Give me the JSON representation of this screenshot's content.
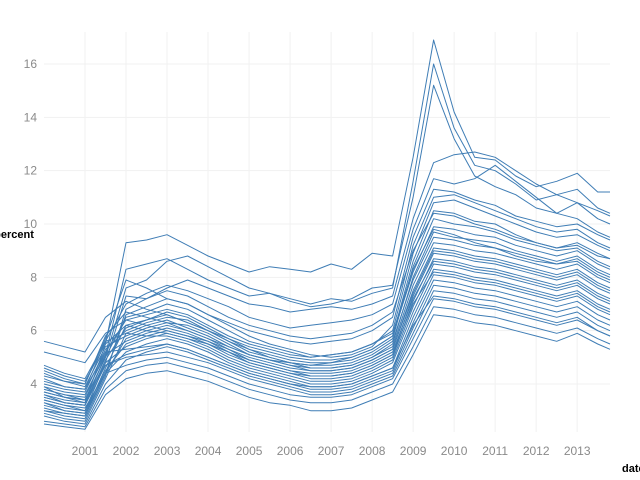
{
  "chart_data": {
    "type": "line",
    "xlabel": "date",
    "ylabel": "percent",
    "xlim": [
      2000.0,
      2013.8
    ],
    "ylim": [
      2.2,
      17.2
    ],
    "x_ticks": [
      "2001",
      "2002",
      "2003",
      "2004",
      "2005",
      "2006",
      "2007",
      "2008",
      "2009",
      "2010",
      "2011",
      "2012",
      "2013"
    ],
    "y_ticks": [
      "4",
      "6",
      "8",
      "10",
      "12",
      "14",
      "16"
    ],
    "x_tick_values": [
      2001,
      2002,
      2003,
      2004,
      2005,
      2006,
      2007,
      2008,
      2009,
      2010,
      2011,
      2012,
      2013
    ],
    "y_tick_values": [
      4,
      6,
      8,
      10,
      12,
      14,
      16
    ],
    "grid": true,
    "line_color": "#3f7db5",
    "x": [
      2000.0,
      2000.5,
      2001.0,
      2001.5,
      2002.0,
      2002.5,
      2003.0,
      2003.5,
      2004.0,
      2004.5,
      2005.0,
      2005.5,
      2006.0,
      2006.5,
      2007.0,
      2007.5,
      2008.0,
      2008.5,
      2009.0,
      2009.5,
      2010.0,
      2010.5,
      2011.0,
      2011.5,
      2012.0,
      2012.5,
      2013.0,
      2013.5,
      2013.8
    ],
    "series": [
      {
        "values": [
          3.9,
          3.5,
          3.3,
          5.5,
          9.3,
          9.4,
          9.6,
          9.2,
          8.8,
          8.5,
          8.2,
          8.4,
          8.3,
          8.2,
          8.5,
          8.3,
          8.9,
          8.8,
          12.5,
          16.9,
          14.2,
          12.5,
          12.4,
          11.8,
          11.4,
          11.6,
          11.9,
          11.2,
          11.2
        ]
      },
      {
        "values": [
          3.6,
          3.3,
          3.2,
          5.1,
          8.3,
          8.5,
          8.7,
          8.3,
          7.9,
          7.6,
          7.3,
          7.4,
          7.2,
          7.0,
          7.2,
          7.1,
          7.4,
          7.6,
          11.6,
          16.0,
          13.6,
          12.2,
          12.0,
          11.5,
          10.9,
          11.1,
          11.3,
          10.6,
          10.4
        ]
      },
      {
        "values": [
          3.7,
          3.5,
          3.4,
          5.0,
          7.6,
          7.9,
          8.6,
          8.8,
          8.4,
          8.0,
          7.6,
          7.4,
          7.1,
          6.9,
          7.0,
          7.2,
          7.6,
          7.7,
          11.0,
          15.2,
          13.2,
          11.8,
          11.4,
          11.1,
          10.6,
          10.4,
          10.8,
          10.2,
          10.0
        ]
      },
      {
        "values": [
          3.4,
          3.2,
          3.0,
          4.8,
          7.3,
          7.2,
          7.6,
          7.9,
          7.6,
          7.3,
          7.0,
          6.9,
          6.7,
          6.8,
          6.9,
          6.8,
          7.0,
          7.3,
          10.2,
          12.3,
          12.6,
          12.7,
          12.5,
          12.0,
          11.5,
          11.1,
          10.8,
          10.5,
          10.3
        ]
      },
      {
        "values": [
          4.2,
          3.9,
          3.8,
          5.6,
          7.0,
          7.4,
          7.7,
          7.5,
          7.2,
          6.9,
          6.5,
          6.3,
          6.1,
          6.2,
          6.3,
          6.4,
          6.6,
          7.0,
          9.8,
          11.7,
          11.5,
          11.7,
          12.2,
          11.6,
          11.0,
          10.4,
          10.2,
          9.7,
          9.5
        ]
      },
      {
        "values": [
          3.0,
          2.9,
          2.8,
          4.4,
          6.6,
          6.9,
          7.2,
          7.0,
          6.6,
          6.3,
          6.0,
          5.8,
          5.6,
          5.5,
          5.6,
          5.7,
          6.0,
          6.5,
          9.5,
          11.3,
          11.2,
          10.9,
          10.7,
          10.3,
          10.1,
          9.9,
          10.0,
          9.6,
          9.4
        ]
      },
      {
        "values": [
          3.8,
          3.6,
          3.5,
          5.2,
          6.4,
          6.6,
          6.8,
          6.6,
          6.2,
          5.8,
          5.5,
          5.3,
          5.1,
          5.0,
          5.1,
          5.2,
          5.5,
          6.0,
          8.9,
          10.8,
          10.9,
          10.6,
          10.3,
          10.0,
          9.7,
          9.5,
          9.6,
          9.2,
          9.0
        ]
      },
      {
        "values": [
          4.5,
          4.2,
          4.0,
          5.8,
          6.7,
          6.5,
          6.3,
          6.0,
          5.7,
          5.4,
          5.1,
          4.9,
          4.8,
          4.7,
          4.8,
          5.0,
          5.3,
          5.8,
          8.6,
          10.5,
          10.4,
          10.1,
          10.0,
          9.6,
          9.3,
          9.1,
          9.2,
          8.8,
          8.7
        ]
      },
      {
        "values": [
          3.3,
          3.0,
          2.9,
          4.6,
          6.2,
          6.4,
          6.6,
          6.3,
          6.0,
          5.6,
          5.3,
          5.1,
          4.9,
          4.8,
          4.8,
          4.9,
          5.2,
          5.7,
          8.4,
          10.2,
          10.0,
          9.9,
          9.7,
          9.4,
          9.2,
          9.0,
          9.1,
          8.6,
          8.4
        ]
      },
      {
        "values": [
          5.6,
          5.4,
          5.2,
          6.5,
          7.1,
          6.8,
          6.6,
          6.3,
          6.0,
          5.7,
          5.4,
          5.2,
          5.0,
          4.9,
          4.9,
          5.0,
          5.3,
          5.8,
          8.2,
          9.9,
          9.8,
          9.6,
          9.5,
          9.2,
          9.0,
          8.8,
          9.0,
          8.5,
          8.3
        ]
      },
      {
        "values": [
          2.9,
          2.7,
          2.6,
          4.2,
          5.9,
          6.2,
          6.4,
          6.1,
          5.8,
          5.4,
          5.1,
          4.9,
          4.7,
          4.6,
          4.6,
          4.7,
          5.0,
          5.5,
          8.0,
          9.7,
          9.5,
          9.4,
          9.3,
          9.0,
          8.8,
          8.6,
          8.8,
          8.3,
          8.1
        ]
      },
      {
        "values": [
          4.0,
          3.8,
          3.7,
          5.3,
          6.0,
          6.3,
          6.5,
          6.4,
          6.0,
          5.6,
          5.2,
          5.0,
          4.8,
          4.7,
          4.7,
          4.8,
          5.1,
          5.6,
          7.9,
          9.5,
          9.4,
          9.2,
          9.1,
          8.8,
          8.6,
          8.5,
          8.6,
          8.1,
          7.9
        ]
      },
      {
        "values": [
          3.5,
          3.3,
          3.2,
          4.9,
          6.1,
          6.4,
          6.7,
          6.5,
          6.1,
          5.7,
          5.3,
          5.0,
          4.8,
          4.6,
          4.6,
          4.7,
          5.0,
          5.4,
          7.7,
          9.3,
          9.2,
          9.0,
          8.9,
          8.7,
          8.5,
          8.3,
          8.5,
          8.0,
          7.8
        ]
      },
      {
        "values": [
          4.4,
          4.1,
          3.9,
          5.4,
          5.8,
          6.1,
          6.3,
          6.2,
          5.9,
          5.5,
          5.1,
          4.9,
          4.7,
          4.5,
          4.5,
          4.6,
          4.9,
          5.3,
          7.5,
          9.1,
          9.0,
          8.8,
          8.7,
          8.5,
          8.3,
          8.1,
          8.3,
          7.8,
          7.6
        ]
      },
      {
        "values": [
          3.1,
          2.9,
          2.8,
          4.4,
          5.7,
          6.0,
          6.2,
          6.0,
          5.7,
          5.3,
          4.9,
          4.7,
          4.5,
          4.3,
          4.3,
          4.4,
          4.7,
          5.1,
          7.3,
          8.9,
          8.8,
          8.6,
          8.5,
          8.3,
          8.1,
          7.9,
          8.1,
          7.6,
          7.4
        ]
      },
      {
        "values": [
          3.9,
          3.7,
          3.6,
          5.1,
          5.6,
          5.9,
          6.1,
          5.9,
          5.6,
          5.2,
          4.8,
          4.6,
          4.4,
          4.2,
          4.2,
          4.3,
          4.6,
          5.0,
          7.1,
          8.7,
          8.6,
          8.4,
          8.3,
          8.1,
          7.9,
          7.7,
          7.9,
          7.4,
          7.2
        ]
      },
      {
        "values": [
          3.6,
          3.4,
          3.3,
          4.8,
          5.4,
          5.7,
          5.9,
          5.7,
          5.4,
          5.0,
          4.7,
          4.5,
          4.3,
          4.1,
          4.1,
          4.2,
          4.5,
          4.9,
          6.9,
          8.5,
          8.4,
          8.2,
          8.1,
          7.9,
          7.7,
          7.5,
          7.7,
          7.2,
          7.0
        ]
      },
      {
        "values": [
          4.7,
          4.4,
          4.2,
          5.6,
          5.9,
          5.8,
          5.8,
          5.6,
          5.3,
          4.9,
          4.6,
          4.4,
          4.2,
          4.0,
          4.0,
          4.1,
          4.4,
          4.8,
          6.7,
          8.3,
          8.2,
          8.0,
          7.9,
          7.7,
          7.5,
          7.3,
          7.5,
          7.0,
          6.8
        ]
      },
      {
        "values": [
          3.2,
          3.0,
          2.9,
          4.4,
          5.2,
          5.5,
          5.7,
          5.5,
          5.2,
          4.8,
          4.5,
          4.3,
          4.1,
          3.9,
          3.9,
          4.0,
          4.3,
          4.6,
          6.5,
          8.1,
          8.0,
          7.8,
          7.7,
          7.5,
          7.3,
          7.1,
          7.3,
          6.8,
          6.6
        ]
      },
      {
        "values": [
          4.1,
          3.9,
          3.8,
          5.2,
          5.3,
          5.4,
          5.5,
          5.3,
          5.0,
          4.7,
          4.4,
          4.2,
          4.0,
          3.8,
          3.8,
          3.9,
          4.2,
          4.5,
          6.3,
          7.9,
          7.8,
          7.6,
          7.5,
          7.3,
          7.1,
          6.9,
          7.1,
          6.6,
          6.4
        ]
      },
      {
        "values": [
          2.8,
          2.6,
          2.5,
          4.0,
          4.9,
          5.2,
          5.4,
          5.2,
          4.9,
          4.6,
          4.3,
          4.1,
          3.9,
          3.7,
          3.7,
          3.8,
          4.1,
          4.4,
          6.1,
          7.7,
          7.6,
          7.4,
          7.3,
          7.1,
          6.9,
          6.7,
          6.9,
          6.4,
          6.2
        ]
      },
      {
        "values": [
          3.7,
          3.5,
          3.4,
          4.7,
          5.0,
          5.1,
          5.2,
          5.0,
          4.8,
          4.5,
          4.2,
          4.0,
          3.8,
          3.6,
          3.6,
          3.7,
          4.0,
          4.3,
          5.9,
          7.5,
          7.4,
          7.2,
          7.1,
          6.9,
          6.7,
          6.5,
          6.7,
          6.2,
          6.0
        ]
      },
      {
        "values": [
          3.4,
          3.2,
          3.1,
          4.4,
          4.7,
          4.9,
          5.0,
          4.8,
          4.6,
          4.3,
          4.0,
          3.8,
          3.6,
          3.5,
          3.5,
          3.6,
          3.9,
          4.2,
          5.7,
          7.2,
          7.1,
          6.9,
          6.8,
          6.6,
          6.4,
          6.2,
          6.4,
          6.0,
          5.8
        ]
      },
      {
        "values": [
          2.6,
          2.5,
          2.4,
          3.8,
          4.5,
          4.7,
          4.8,
          4.6,
          4.4,
          4.1,
          3.8,
          3.6,
          3.4,
          3.3,
          3.3,
          3.4,
          3.7,
          4.0,
          5.4,
          6.9,
          6.8,
          6.6,
          6.5,
          6.3,
          6.1,
          5.9,
          6.1,
          5.7,
          5.5
        ]
      },
      {
        "values": [
          2.5,
          2.4,
          2.3,
          3.6,
          4.2,
          4.4,
          4.5,
          4.3,
          4.1,
          3.8,
          3.5,
          3.3,
          3.2,
          3.0,
          3.0,
          3.1,
          3.4,
          3.7,
          5.1,
          6.6,
          6.5,
          6.3,
          6.2,
          6.0,
          5.8,
          5.6,
          5.9,
          5.5,
          5.3
        ]
      },
      {
        "values": [
          4.3,
          4.1,
          4.0,
          5.7,
          7.9,
          7.6,
          7.2,
          7.0,
          6.6,
          6.2,
          5.8,
          5.5,
          5.3,
          5.1,
          5.0,
          5.1,
          5.4,
          6.2,
          9.2,
          11.0,
          11.1,
          10.8,
          10.5,
          10.2,
          9.9,
          9.7,
          9.8,
          9.3,
          9.1
        ]
      },
      {
        "values": [
          3.0,
          2.8,
          2.7,
          4.3,
          6.8,
          7.2,
          7.5,
          7.3,
          6.9,
          6.5,
          6.2,
          6.0,
          5.8,
          5.7,
          5.8,
          5.9,
          6.2,
          6.7,
          9.0,
          10.4,
          10.3,
          10.0,
          9.8,
          9.5,
          9.3,
          9.1,
          9.3,
          8.9,
          8.7
        ]
      },
      {
        "values": [
          3.8,
          3.6,
          3.4,
          5.0,
          6.5,
          6.7,
          7.0,
          6.8,
          6.4,
          6.0,
          5.6,
          5.4,
          5.2,
          5.0,
          5.1,
          5.2,
          5.5,
          5.9,
          8.3,
          9.8,
          9.6,
          9.3,
          9.1,
          8.9,
          8.7,
          8.5,
          8.7,
          8.2,
          8.0
        ]
      },
      {
        "values": [
          4.6,
          4.3,
          4.1,
          5.5,
          6.2,
          6.0,
          5.9,
          5.7,
          5.5,
          5.2,
          4.9,
          4.7,
          4.5,
          4.4,
          4.4,
          4.5,
          4.8,
          5.2,
          7.2,
          8.6,
          8.5,
          8.3,
          8.2,
          8.0,
          7.8,
          7.6,
          7.8,
          7.3,
          7.1
        ]
      },
      {
        "values": [
          3.3,
          3.1,
          3.0,
          4.5,
          5.5,
          5.8,
          6.0,
          5.8,
          5.5,
          5.1,
          4.8,
          4.6,
          4.4,
          4.3,
          4.3,
          4.4,
          4.7,
          5.1,
          7.0,
          8.2,
          8.1,
          7.9,
          7.8,
          7.6,
          7.4,
          7.2,
          7.4,
          6.9,
          6.7
        ]
      },
      {
        "values": [
          5.2,
          5.0,
          4.8,
          5.9,
          6.4,
          6.2,
          6.0,
          5.8,
          5.6,
          5.3,
          5.0,
          4.8,
          4.6,
          4.5,
          4.5,
          4.6,
          4.9,
          5.3,
          7.4,
          9.0,
          8.9,
          8.7,
          8.6,
          8.4,
          8.2,
          8.0,
          8.2,
          7.7,
          7.5
        ]
      },
      {
        "values": [
          3.5,
          3.3,
          3.2,
          4.7,
          5.1,
          5.3,
          5.5,
          5.3,
          5.0,
          4.7,
          4.4,
          4.2,
          4.0,
          3.9,
          3.9,
          4.0,
          4.3,
          4.6,
          6.2,
          7.3,
          7.2,
          7.0,
          6.9,
          6.7,
          6.5,
          6.3,
          6.5,
          6.0,
          5.8
        ]
      }
    ]
  }
}
